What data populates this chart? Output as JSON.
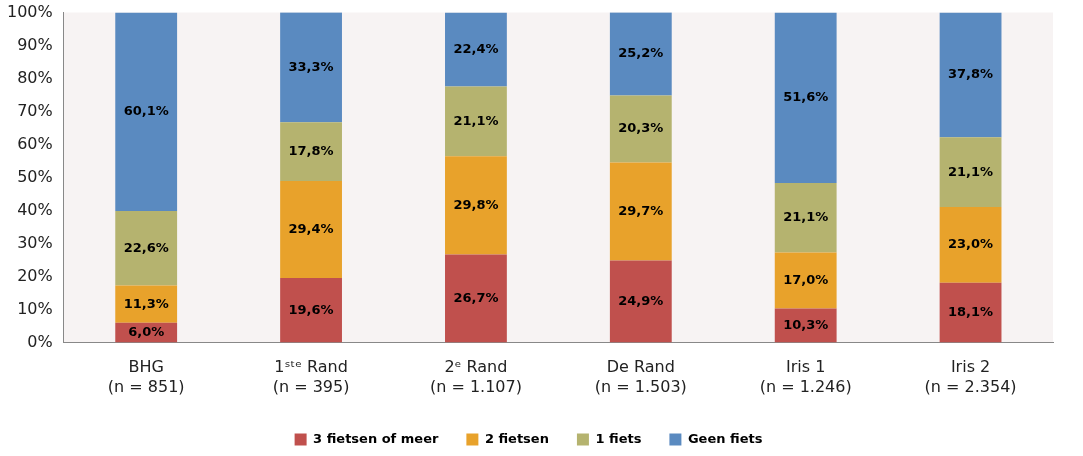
{
  "chart_data": {
    "type": "bar",
    "stacked": true,
    "categories": [
      "BHG\n(n = 851)",
      "1ˢᵗᵉ Rand\n(n = 395)",
      "2ᵉ Rand\n(n = 1.107)",
      "De Rand\n(n = 1.503)",
      "Iris 1\n(n = 1.246)",
      "Iris 2\n(n = 2.354)"
    ],
    "series": [
      {
        "name": "3 fietsen of meer",
        "color": "#c0504d",
        "values": [
          6.0,
          19.6,
          26.7,
          24.9,
          10.3,
          18.1
        ],
        "value_labels": [
          "6,0%",
          "19,6%",
          "26,7%",
          "24,9%",
          "10,3%",
          "18,1%"
        ]
      },
      {
        "name": "2 fietsen",
        "color": "#e8a22b",
        "values": [
          11.3,
          29.4,
          29.8,
          29.7,
          17.0,
          23.0
        ],
        "value_labels": [
          "11,3%",
          "29,4%",
          "29,8%",
          "29,7%",
          "17,0%",
          "23,0%"
        ]
      },
      {
        "name": "1 fiets",
        "color": "#b5b36f",
        "values": [
          22.6,
          17.8,
          21.1,
          20.3,
          21.1,
          21.1
        ],
        "value_labels": [
          "22,6%",
          "17,8%",
          "21,1%",
          "20,3%",
          "21,1%",
          "21,1%"
        ]
      },
      {
        "name": "Geen fiets",
        "color": "#5a8ac0",
        "values": [
          60.1,
          33.3,
          22.4,
          25.2,
          51.6,
          37.8
        ],
        "value_labels": [
          "60,1%",
          "33,3%",
          "22,4%",
          "25,2%",
          "51,6%",
          "37,8%"
        ]
      }
    ],
    "ylim": [
      0,
      100
    ],
    "yticks": [
      {
        "value": 0,
        "label": "0%"
      },
      {
        "value": 10,
        "label": "10%"
      },
      {
        "value": 20,
        "label": "20%"
      },
      {
        "value": 30,
        "label": "30%"
      },
      {
        "value": 40,
        "label": "40%"
      },
      {
        "value": 50,
        "label": "50%"
      },
      {
        "value": 60,
        "label": "60%"
      },
      {
        "value": 70,
        "label": "70%"
      },
      {
        "value": 80,
        "label": "80%"
      },
      {
        "value": 90,
        "label": "90%"
      },
      {
        "value": 100,
        "label": "100%"
      }
    ],
    "grid": false,
    "legend": "bottom"
  }
}
